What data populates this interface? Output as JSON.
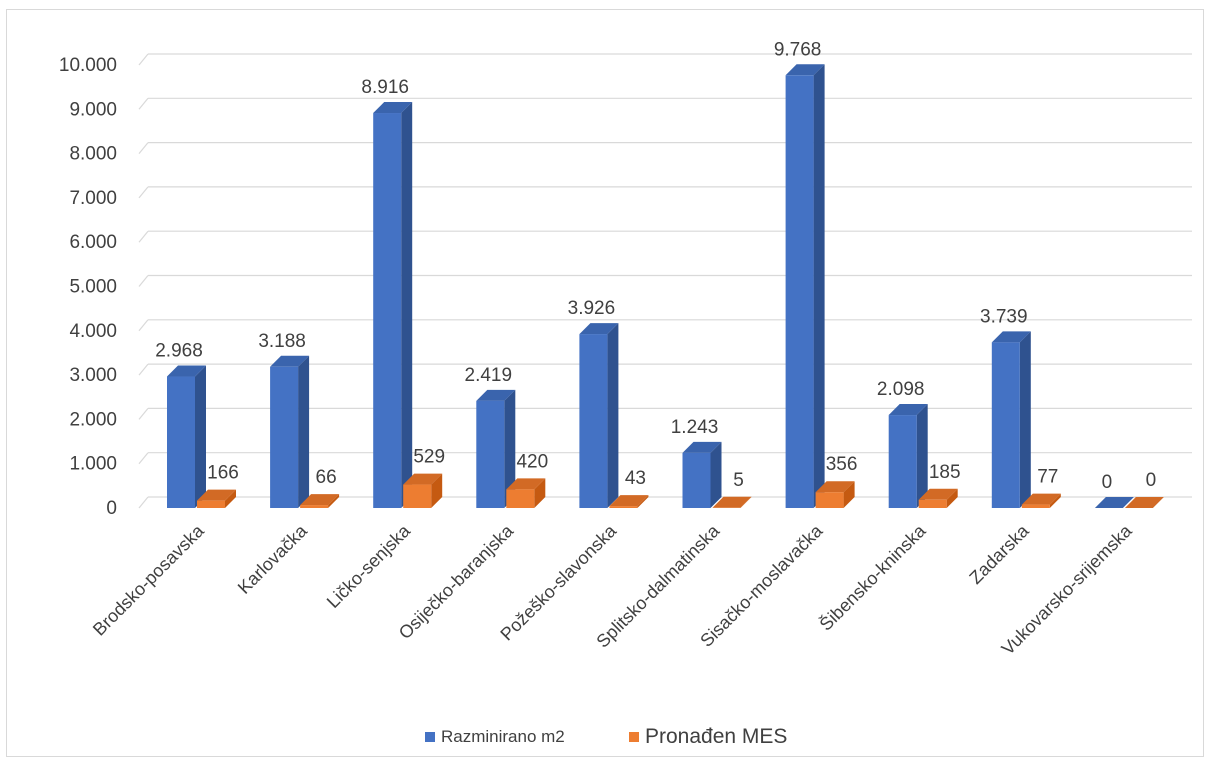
{
  "chart_data": {
    "type": "bar",
    "categories": [
      "Brodsko-posavska",
      "Karlovačka",
      "Ličko-senjska",
      "Osiječko-baranjska",
      "Požeško-slavonska",
      "Splitsko-dalmatinska",
      "Sisačko-moslavačka",
      "Šibensko-kninska",
      "Zadarska",
      "Vukovarsko-srijemska"
    ],
    "series": [
      {
        "name": "Razminirano m2",
        "values": [
          2968,
          3188,
          8916,
          2419,
          3926,
          1243,
          9768,
          2098,
          3739,
          0
        ],
        "labels": [
          "2.968",
          "3.188",
          "8.916",
          "2.419",
          "3.926",
          "1.243",
          "9.768",
          "2.098",
          "3.739",
          "0"
        ]
      },
      {
        "name": "Pronađen MES",
        "values": [
          166,
          66,
          529,
          420,
          43,
          5,
          356,
          185,
          77,
          0
        ],
        "labels": [
          "166",
          "66",
          "529",
          "420",
          "43",
          "5",
          "356",
          "185",
          "77",
          "0"
        ]
      }
    ],
    "yticks": [
      0,
      1000,
      2000,
      3000,
      4000,
      5000,
      6000,
      7000,
      8000,
      9000,
      10000
    ],
    "ytick_labels": [
      "0",
      "1.000",
      "2.000",
      "3.000",
      "4.000",
      "5.000",
      "6.000",
      "7.000",
      "8.000",
      "9.000",
      "10.000"
    ],
    "ylim": [
      0,
      10000
    ],
    "grid": true,
    "legend_position": "bottom",
    "colors": {
      "series1_front": "#4472c4",
      "series1_side": "#2f528f",
      "series1_top": "#3a64ad",
      "series2_front": "#ed7d31",
      "series2_side": "#c55a11",
      "series2_top": "#d26a25",
      "grid": "#d9d9d9",
      "text": "#404040"
    }
  }
}
